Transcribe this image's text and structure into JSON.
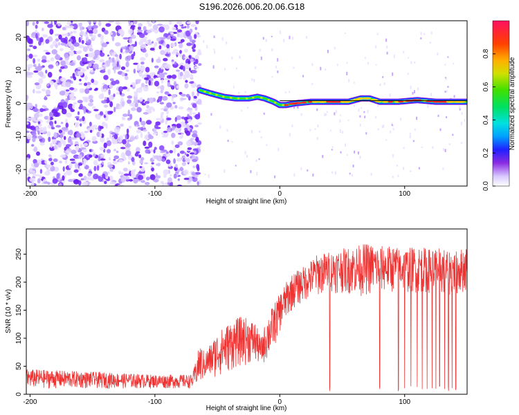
{
  "title": "S196.2026.006.20.06.G18",
  "chart_data": [
    {
      "type": "heatmap",
      "xlabel": "Height of straight line (km)",
      "ylabel": "Frequency (Hz)",
      "xlim": [
        -203,
        150
      ],
      "ylim": [
        -25,
        25
      ],
      "xticks": [
        -200,
        -100,
        0,
        100
      ],
      "yticks": [
        -20,
        -10,
        0,
        10,
        20
      ],
      "colorbar": {
        "label": "Normalized spectral amplitude",
        "range": [
          0,
          1
        ],
        "ticks": [
          0.0,
          0.2,
          0.4,
          0.6,
          0.8
        ],
        "tick_labels": [
          "0.0",
          "0.2",
          "0.4",
          "0.6",
          "0.8"
        ]
      },
      "noise_region_end": -64,
      "ridge": {
        "x": [
          -64,
          -55,
          -45,
          -35,
          -25,
          -18,
          -12,
          -5,
          0,
          5,
          12,
          25,
          40,
          55,
          65,
          72,
          80,
          95,
          110,
          125,
          140,
          150
        ],
        "freq": [
          4,
          3,
          2,
          1.5,
          1.5,
          2,
          1.5,
          0.5,
          -0.5,
          -0.5,
          0,
          0.5,
          0.5,
          0.5,
          1.5,
          1.5,
          0.5,
          0.5,
          1.0,
          0.5,
          0.5,
          0.5
        ]
      },
      "reference_line": {
        "freq": 0.8,
        "x_start": 0,
        "x_end": 150
      }
    },
    {
      "type": "line",
      "xlabel": "Height of straight line (km)",
      "ylabel": "SNR (10 * v/v)",
      "xlim": [
        -203,
        150
      ],
      "ylim": [
        0,
        295
      ],
      "xticks": [
        -200,
        -100,
        0,
        100
      ],
      "yticks": [
        0,
        50,
        100,
        150,
        200,
        250
      ],
      "series": [
        {
          "color": "#ee3333",
          "envelope": {
            "x": [
              -203,
              -150,
              -100,
              -70,
              -64,
              -60,
              -50,
              -40,
              -30,
              -20,
              -15,
              -10,
              -5,
              0,
              5,
              10,
              20,
              30,
              40,
              50,
              60,
              70,
              80,
              90,
              100,
              110,
              120,
              130,
              140,
              150
            ],
            "low": [
              10,
              10,
              10,
              10,
              15,
              25,
              30,
              40,
              50,
              55,
              50,
              60,
              80,
              110,
              130,
              150,
              165,
              175,
              180,
              180,
              175,
              175,
              180,
              180,
              180,
              180,
              180,
              175,
              175,
              180
            ],
            "high": [
              45,
              40,
              35,
              35,
              90,
              75,
              110,
              130,
              140,
              130,
              100,
              140,
              160,
              180,
              200,
              215,
              230,
              250,
              255,
              260,
              265,
              270,
              265,
              265,
              260,
              265,
              260,
              262,
              255,
              265
            ]
          },
          "dropouts": [
            40,
            80,
            95,
            100,
            105,
            110,
            114,
            118,
            122,
            125,
            128,
            132,
            135,
            138,
            141
          ]
        }
      ]
    }
  ]
}
